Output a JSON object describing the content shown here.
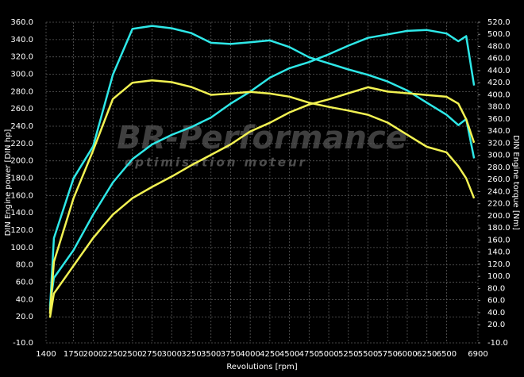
{
  "chart_data": {
    "type": "line",
    "x_label": "Revolutions [rpm]",
    "y_label": "DIN Engine power [DIN hp]",
    "y2_label": "DIN Engine torque [Nm]",
    "watermark": {
      "title": "BR-Performance",
      "subtitle": "optimisation moteur"
    },
    "x": [
      1450,
      1500,
      1750,
      2000,
      2250,
      2500,
      2750,
      3000,
      3250,
      3500,
      3750,
      4000,
      4250,
      4500,
      4750,
      5000,
      5250,
      5500,
      5750,
      6000,
      6250,
      6500,
      6650,
      6750,
      6850
    ],
    "series": [
      {
        "color": "#2ee8e8",
        "axis": "y2",
        "values": [
          45,
          163,
          262,
          315,
          433,
          509,
          514,
          510,
          502,
          486,
          484,
          487,
          490,
          479,
          462,
          452,
          442,
          433,
          422,
          407,
          387,
          367,
          350,
          360,
          295
        ]
      },
      {
        "color": "#2ee8e8",
        "axis": "y",
        "values": [
          33,
          65,
          97,
          138,
          175,
          202,
          219,
          230,
          239,
          250,
          266,
          280,
          296,
          307,
          314,
          323,
          333,
          342,
          346,
          350,
          351,
          347,
          338,
          344,
          287
        ]
      },
      {
        "color": "#f2f252",
        "axis": "y2",
        "values": [
          38,
          124,
          229,
          308,
          393,
          420,
          424,
          421,
          413,
          400,
          402,
          405,
          402,
          397,
          387,
          380,
          374,
          367,
          354,
          334,
          314,
          305,
          282,
          262,
          229
        ]
      },
      {
        "color": "#f2f252",
        "axis": "y",
        "values": [
          19,
          47,
          79,
          111,
          138,
          157,
          170,
          182,
          195,
          207,
          219,
          234,
          244,
          256,
          265,
          271,
          278,
          285,
          280,
          278,
          276,
          274,
          266,
          248,
          221
        ]
      }
    ],
    "xlim": [
      1400,
      6900
    ],
    "xticks": [
      1400,
      1750,
      2000,
      2250,
      2500,
      2750,
      3000,
      3250,
      3500,
      3750,
      4000,
      4250,
      4500,
      4750,
      5000,
      5250,
      5500,
      5750,
      6000,
      6250,
      6500,
      6900
    ],
    "ylim": [
      -10,
      360
    ],
    "yticks": [
      {
        "value": -10,
        "label": "-10.0"
      },
      {
        "value": 20,
        "label": "20.0"
      },
      {
        "value": 40,
        "label": "40.0"
      },
      {
        "value": 60,
        "label": "60.0"
      },
      {
        "value": 80,
        "label": "80.0"
      },
      {
        "value": 100,
        "label": "100.0"
      },
      {
        "value": 120,
        "label": "120.0"
      },
      {
        "value": 140,
        "label": "140.0"
      },
      {
        "value": 160,
        "label": "160.0"
      },
      {
        "value": 180,
        "label": "180.0"
      },
      {
        "value": 200,
        "label": "200.0"
      },
      {
        "value": 220,
        "label": "220.0"
      },
      {
        "value": 240,
        "label": "240.0"
      },
      {
        "value": 260,
        "label": "260.0"
      },
      {
        "value": 280,
        "label": "280.0"
      },
      {
        "value": 300,
        "label": "300.0"
      },
      {
        "value": 320,
        "label": "320.0"
      },
      {
        "value": 340,
        "label": "340.0"
      },
      {
        "value": 360,
        "label": "360.0"
      }
    ],
    "y2lim": [
      -10,
      520
    ],
    "y2ticks": [
      {
        "value": -10,
        "label": "-10.0"
      },
      {
        "value": 20,
        "label": "20.0"
      },
      {
        "value": 40,
        "label": "40.0"
      },
      {
        "value": 60,
        "label": "60.0"
      },
      {
        "value": 80,
        "label": "80.0"
      },
      {
        "value": 100,
        "label": "100.0"
      },
      {
        "value": 120,
        "label": "120.0"
      },
      {
        "value": 140,
        "label": "140.0"
      },
      {
        "value": 160,
        "label": "160.0"
      },
      {
        "value": 180,
        "label": "180.0"
      },
      {
        "value": 200,
        "label": "200.0"
      },
      {
        "value": 220,
        "label": "220.0"
      },
      {
        "value": 240,
        "label": "240.0"
      },
      {
        "value": 260,
        "label": "260.0"
      },
      {
        "value": 280,
        "label": "280.0"
      },
      {
        "value": 300,
        "label": "300.0"
      },
      {
        "value": 320,
        "label": "320.0"
      },
      {
        "value": 340,
        "label": "340.0"
      },
      {
        "value": 360,
        "label": "360.0"
      },
      {
        "value": 380,
        "label": "380.0"
      },
      {
        "value": 400,
        "label": "400.0"
      },
      {
        "value": 420,
        "label": "420.0"
      },
      {
        "value": 440,
        "label": "440.0"
      },
      {
        "value": 460,
        "label": "460.0"
      },
      {
        "value": 480,
        "label": "480.0"
      },
      {
        "value": 500,
        "label": "500.0"
      },
      {
        "value": 520,
        "label": "520.0"
      }
    ],
    "grid": true
  }
}
